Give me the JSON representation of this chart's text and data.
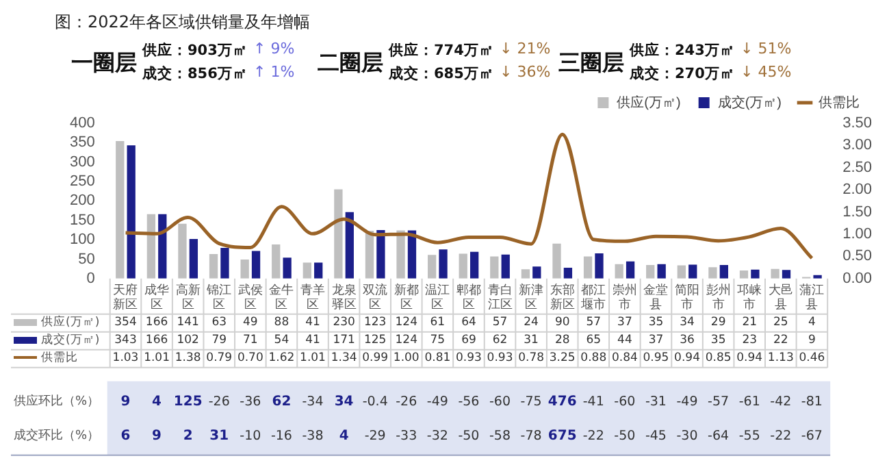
{
  "chart_data": {
    "type": "bar",
    "title": "图：2022年各区域供销量及年增幅",
    "categories": [
      "天府新区",
      "成华区",
      "高新区",
      "锦江区",
      "武侯区",
      "金牛区",
      "青羊区",
      "龙泉驿区",
      "双流区",
      "新都区",
      "温江区",
      "郫都区",
      "青白江区",
      "新津区",
      "东部新区",
      "都江堰市",
      "崇州市",
      "金堂县",
      "简阳市",
      "彭州市",
      "邛崃市",
      "大邑县",
      "蒲江县"
    ],
    "series": [
      {
        "name": "供应(万㎡)",
        "color": "#bfbfbf",
        "values": [
          354,
          166,
          141,
          63,
          49,
          88,
          41,
          230,
          123,
          124,
          61,
          64,
          57,
          24,
          90,
          57,
          37,
          35,
          34,
          29,
          21,
          25,
          4
        ]
      },
      {
        "name": "成交(万㎡)",
        "color": "#1c1f8a",
        "values": [
          343,
          166,
          102,
          79,
          71,
          54,
          41,
          171,
          125,
          124,
          75,
          69,
          62,
          31,
          28,
          65,
          44,
          37,
          36,
          35,
          23,
          22,
          9
        ]
      },
      {
        "name": "供需比",
        "type": "line",
        "axis": "y2",
        "color": "#9a6327",
        "values": [
          1.03,
          1.01,
          1.38,
          0.79,
          0.7,
          1.62,
          1.01,
          1.34,
          0.99,
          1.0,
          0.81,
          0.93,
          0.93,
          0.78,
          3.25,
          0.88,
          0.84,
          0.95,
          0.94,
          0.85,
          0.94,
          1.13,
          0.46
        ],
        "value_labels": [
          "1.03",
          "1.01",
          "1.38",
          "0.79",
          "0.70",
          "1.62",
          "1.01",
          "1.34",
          "0.99",
          "1.00",
          "0.81",
          "0.93",
          "0.93",
          "0.78",
          "3.25",
          "0.88",
          "0.84",
          "0.95",
          "0.94",
          "0.85",
          "0.94",
          "1.13",
          "0.46"
        ]
      }
    ],
    "ylim": [
      0,
      400
    ],
    "yticks": [
      0,
      50,
      100,
      150,
      200,
      250,
      300,
      350,
      400
    ],
    "y2lim": [
      0,
      3.5
    ],
    "y2ticks": [
      {
        "value": 0,
        "label": "0.00"
      },
      {
        "value": 0.5,
        "label": "0.50"
      },
      {
        "value": 1,
        "label": "1.00"
      },
      {
        "value": 1.5,
        "label": "1.50"
      },
      {
        "value": 2,
        "label": "2.00"
      },
      {
        "value": 2.5,
        "label": "2.50"
      },
      {
        "value": 3,
        "label": "3.00"
      },
      {
        "value": 3.5,
        "label": "3.50"
      }
    ],
    "grid": false,
    "legend": "top right",
    "data_labels": true,
    "marker": "none",
    "line_style": "solid",
    "annotations": [
      "一圈层",
      "供应：903万㎡",
      "↑ 9%",
      "成交：856万㎡",
      "↑ 1%",
      "二圈层",
      "供应：774万㎡",
      "↓ 21%",
      "成交：685万㎡",
      "↓ 36%",
      "三圈层",
      "供应：243万㎡",
      "↓ 51%",
      "成交：270万㎡",
      "↓ 45%",
      "供应环比（%）",
      "9",
      "4",
      "125",
      "-26",
      "-36",
      "62",
      "-34",
      "34",
      "-0.4",
      "-26",
      "-49",
      "-56",
      "-60",
      "-75",
      "476",
      "-41",
      "-60",
      "-31",
      "-49",
      "-57",
      "-61",
      "-42",
      "-81",
      "成交环比（%）",
      "6",
      "9",
      "2",
      "31",
      "-10",
      "-16",
      "-38",
      "4",
      "-29",
      "-33",
      "-32",
      "-50",
      "-58",
      "-78",
      "675",
      "-22",
      "-50",
      "-45",
      "-30",
      "-64",
      "-55",
      "-22",
      "-67"
    ]
  }
}
